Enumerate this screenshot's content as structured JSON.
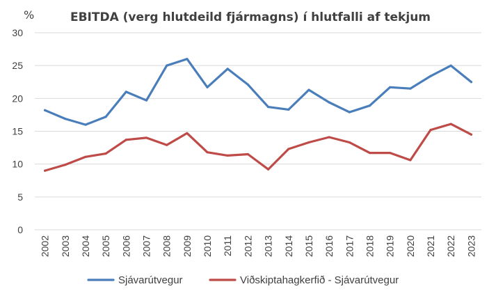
{
  "chart_data": {
    "type": "line",
    "title": "EBITDA (verg hlutdeild fjármagns) í hlutfalli af tekjum",
    "ylabel": "%",
    "xlabel": "",
    "ylim": [
      0,
      30
    ],
    "yticks": [
      0,
      5,
      10,
      15,
      20,
      25,
      30
    ],
    "grid": "horizontal",
    "legend": "bottom",
    "categories": [
      "2002",
      "2003",
      "2004",
      "2005",
      "2006",
      "2007",
      "2008",
      "2009",
      "2010",
      "2011",
      "2012",
      "2013",
      "2014",
      "2015",
      "2016",
      "2017",
      "2018",
      "2019",
      "2020",
      "2021",
      "2022",
      "2023"
    ],
    "series": [
      {
        "name": "Sjávarútvegur",
        "color": "#4a7ebb",
        "values": [
          18.2,
          16.9,
          16.0,
          17.2,
          21.0,
          19.7,
          25.0,
          26.0,
          21.7,
          24.5,
          22.1,
          18.7,
          18.3,
          21.3,
          19.4,
          17.9,
          18.9,
          21.7,
          21.5,
          23.4,
          25.0,
          22.5
        ]
      },
      {
        "name": "Viðskiptahagkerfið - Sjávarútvegur",
        "color": "#be4b48",
        "values": [
          9.0,
          9.9,
          11.1,
          11.6,
          13.7,
          14.0,
          12.9,
          14.7,
          11.8,
          11.3,
          11.5,
          9.2,
          12.3,
          13.3,
          14.1,
          13.3,
          11.7,
          11.7,
          10.6,
          15.2,
          16.1,
          14.5
        ]
      }
    ]
  }
}
